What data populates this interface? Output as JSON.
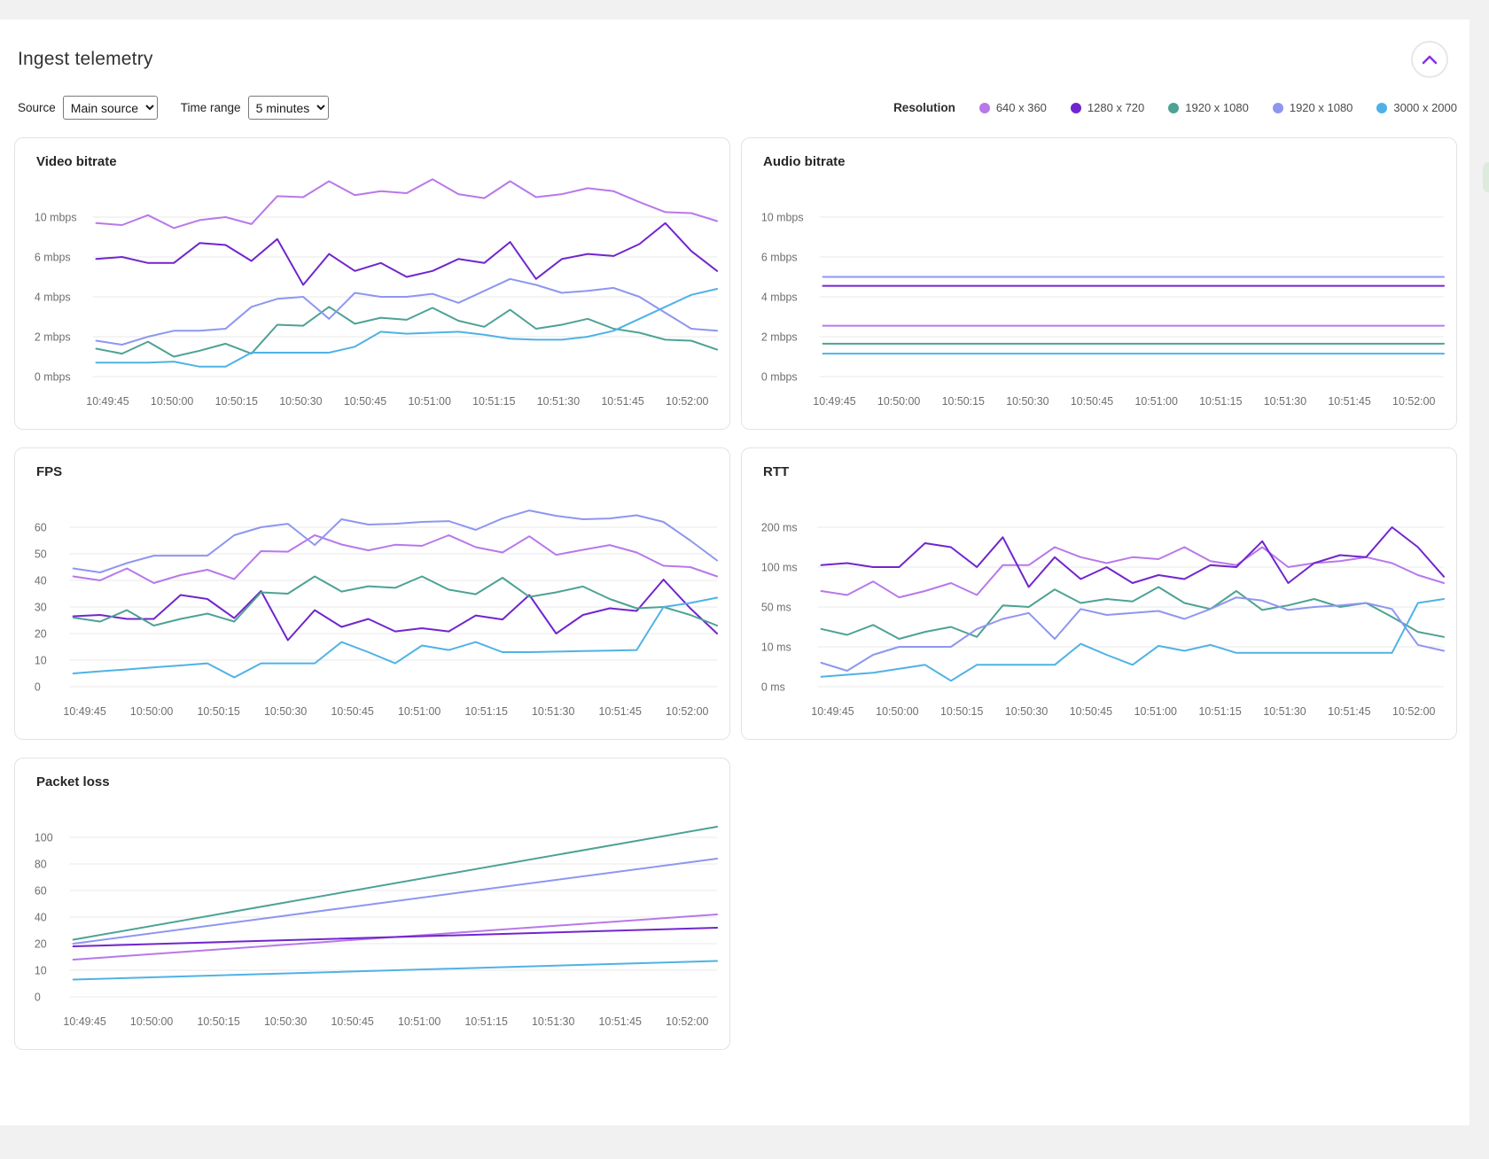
{
  "page": {
    "title": "Ingest telemetry"
  },
  "controls": {
    "source_label": "Source",
    "source_value": "Main source",
    "time_range_label": "Time range",
    "time_range_value": "5 minutes"
  },
  "legend": {
    "label": "Resolution",
    "items": [
      {
        "label": "640 x 360",
        "color": "#b878ea"
      },
      {
        "label": "1280 x 720",
        "color": "#7125cd"
      },
      {
        "label": "1920 x 1080",
        "color": "#4da294"
      },
      {
        "label": "1920 x 1080",
        "color": "#8e96f0"
      },
      {
        "label": "3000 x 2000",
        "color": "#4fb2e5"
      }
    ]
  },
  "chart_data": [
    {
      "type": "line",
      "title": "Video bitrate",
      "grid": true,
      "x_ticks": [
        "10:49:45",
        "10:50:00",
        "10:50:15",
        "10:50:30",
        "10:50:45",
        "10:51:00",
        "10:51:15",
        "10:51:30",
        "10:51:45",
        "10:52:00"
      ],
      "y_ticks": [
        {
          "value": 0,
          "label": "0 mbps"
        },
        {
          "value": 2,
          "label": "2 mbps"
        },
        {
          "value": 4,
          "label": "4 mbps"
        },
        {
          "value": 6,
          "label": "6 mbps"
        },
        {
          "value": 10,
          "label": "10 mbps"
        }
      ],
      "series": [
        {
          "name": "640 x 360",
          "color": "#b878ea",
          "values": [
            9.4,
            9.2,
            10.2,
            8.9,
            9.7,
            10.0,
            9.3,
            12.1,
            12.0,
            13.6,
            12.2,
            12.6,
            12.4,
            13.8,
            12.3,
            11.9,
            13.6,
            12.0,
            12.3,
            12.9,
            12.6,
            11.5,
            10.5,
            10.4,
            9.6
          ]
        },
        {
          "name": "1280 x 720",
          "color": "#7125cd",
          "values": [
            5.9,
            6.0,
            5.7,
            5.7,
            7.4,
            7.2,
            5.8,
            7.8,
            4.6,
            6.3,
            5.3,
            5.7,
            5.0,
            5.3,
            5.9,
            5.7,
            7.5,
            4.9,
            5.9,
            6.3,
            6.1,
            7.3,
            9.4,
            6.6,
            5.3
          ]
        },
        {
          "name": "1920 x 1080",
          "color": "#4da294",
          "values": [
            1.4,
            1.15,
            1.75,
            1.0,
            1.3,
            1.65,
            1.15,
            2.6,
            2.55,
            3.5,
            2.65,
            2.95,
            2.85,
            3.45,
            2.8,
            2.5,
            3.35,
            2.4,
            2.6,
            2.9,
            2.4,
            2.2,
            1.85,
            1.8,
            1.35
          ]
        },
        {
          "name": "1920 x 1080",
          "color": "#8e96f0",
          "values": [
            1.8,
            1.6,
            2.0,
            2.3,
            2.3,
            2.4,
            3.5,
            3.9,
            4.0,
            2.9,
            4.2,
            4.0,
            4.0,
            4.15,
            3.7,
            4.3,
            4.9,
            4.6,
            4.2,
            4.3,
            4.45,
            4.0,
            3.2,
            2.4,
            2.3
          ]
        },
        {
          "name": "3000 x 2000",
          "color": "#4fb2e5",
          "values": [
            0.7,
            0.7,
            0.7,
            0.75,
            0.5,
            0.5,
            1.2,
            1.2,
            1.2,
            1.2,
            1.5,
            2.25,
            2.15,
            2.2,
            2.25,
            2.1,
            1.9,
            1.85,
            1.85,
            2.0,
            2.3,
            2.9,
            3.5,
            4.1,
            4.4
          ]
        }
      ]
    },
    {
      "type": "line",
      "title": "Audio bitrate",
      "grid": true,
      "x_ticks": [
        "10:49:45",
        "10:50:00",
        "10:50:15",
        "10:50:30",
        "10:50:45",
        "10:51:00",
        "10:51:15",
        "10:51:30",
        "10:51:45",
        "10:52:00"
      ],
      "y_ticks": [
        {
          "value": 0,
          "label": "0 mbps"
        },
        {
          "value": 2,
          "label": "2 mbps"
        },
        {
          "value": 4,
          "label": "4 mbps"
        },
        {
          "value": 6,
          "label": "6 mbps"
        },
        {
          "value": 10,
          "label": "10 mbps"
        }
      ],
      "series": [
        {
          "name": "640 x 360",
          "color": "#b878ea",
          "values": [
            2.55,
            2.55
          ]
        },
        {
          "name": "1280 x 720",
          "color": "#7125cd",
          "values": [
            4.55,
            4.55
          ]
        },
        {
          "name": "1920 x 1080",
          "color": "#4da294",
          "values": [
            1.65,
            1.65
          ]
        },
        {
          "name": "1920 x 1080",
          "color": "#8e96f0",
          "values": [
            5.0,
            5.0
          ]
        },
        {
          "name": "3000 x 2000",
          "color": "#4fb2e5",
          "values": [
            1.15,
            1.15
          ]
        }
      ]
    },
    {
      "type": "line",
      "title": "FPS",
      "grid": true,
      "x_ticks": [
        "10:49:45",
        "10:50:00",
        "10:50:15",
        "10:50:30",
        "10:50:45",
        "10:51:00",
        "10:51:15",
        "10:51:30",
        "10:51:45",
        "10:52:00"
      ],
      "y_ticks": [
        {
          "value": 0,
          "label": "0"
        },
        {
          "value": 10,
          "label": "10"
        },
        {
          "value": 20,
          "label": "20"
        },
        {
          "value": 30,
          "label": "30"
        },
        {
          "value": 40,
          "label": "40"
        },
        {
          "value": 50,
          "label": "50"
        },
        {
          "value": 60,
          "label": "60"
        }
      ],
      "series": [
        {
          "name": "640 x 360",
          "color": "#b878ea",
          "values": [
            41.5,
            40,
            44.5,
            39,
            42,
            44,
            40.5,
            51,
            50.8,
            57,
            53.5,
            51.3,
            53.4,
            53,
            57,
            52.5,
            50.5,
            56.6,
            49.6,
            51.5,
            53.3,
            50.5,
            45.5,
            45,
            41.5
          ]
        },
        {
          "name": "1280 x 720",
          "color": "#7125cd",
          "values": [
            26.5,
            27,
            25.5,
            25.5,
            34.5,
            33,
            25.8,
            36,
            17.5,
            28.8,
            22.5,
            25.5,
            20.8,
            22,
            20.8,
            26.8,
            25.3,
            34.5,
            20,
            27,
            29.5,
            28.5,
            40.3,
            29.5,
            20
          ]
        },
        {
          "name": "1920 x 1080",
          "color": "#4da294",
          "values": [
            26,
            24.5,
            28.8,
            23,
            25.5,
            27.5,
            24.5,
            35.5,
            35,
            41.5,
            35.8,
            37.8,
            37.2,
            41.5,
            36.5,
            34.8,
            41,
            33.8,
            35.5,
            37.7,
            33,
            29.5,
            30,
            27,
            23
          ]
        },
        {
          "name": "1920 x 1080",
          "color": "#8e96f0",
          "values": [
            44.5,
            43,
            46.5,
            49.3,
            49.3,
            49.3,
            57,
            60,
            61.3,
            53.3,
            63,
            61,
            61.3,
            62,
            62.3,
            59,
            63.3,
            66.3,
            64.3,
            63,
            63.3,
            64.5,
            62,
            55,
            47.5
          ]
        },
        {
          "name": "3000 x 2000",
          "color": "#4fb2e5",
          "values": [
            5,
            5.8,
            6.5,
            7.3,
            8,
            8.8,
            3.5,
            8.8,
            8.8,
            8.8,
            16.8,
            13,
            8.8,
            15.5,
            13.8,
            16.8,
            13,
            13,
            13.2,
            13.4,
            13.6,
            13.8,
            30,
            31.5,
            33.5
          ]
        }
      ]
    },
    {
      "type": "line",
      "title": "RTT",
      "grid": true,
      "x_ticks": [
        "10:49:45",
        "10:50:00",
        "10:50:15",
        "10:50:30",
        "10:50:45",
        "10:51:00",
        "10:51:15",
        "10:51:30",
        "10:51:45",
        "10:52:00"
      ],
      "y_ticks": [
        {
          "value": 0,
          "label": "0 ms"
        },
        {
          "value": 10,
          "label": "10 ms"
        },
        {
          "value": 50,
          "label": "50 ms"
        },
        {
          "value": 100,
          "label": "100 ms"
        },
        {
          "value": 200,
          "label": "200 ms"
        }
      ],
      "series": [
        {
          "name": "640 x 360",
          "color": "#b878ea",
          "values": [
            70,
            65,
            82,
            62,
            70,
            80,
            65,
            105,
            105,
            150,
            125,
            110,
            125,
            120,
            150,
            115,
            105,
            150,
            100,
            110,
            115,
            125,
            110,
            90,
            80
          ]
        },
        {
          "name": "1280 x 720",
          "color": "#7125cd",
          "values": [
            105,
            110,
            100,
            100,
            160,
            150,
            100,
            175,
            75,
            125,
            85,
            100,
            80,
            90,
            85,
            105,
            100,
            165,
            80,
            110,
            130,
            125,
            200,
            150,
            88
          ]
        },
        {
          "name": "1920 x 1080",
          "color": "#4da294",
          "values": [
            28,
            22,
            32,
            18,
            25,
            30,
            20,
            52,
            50,
            72,
            55,
            60,
            57,
            75,
            55,
            48,
            70,
            47,
            52,
            60,
            50,
            55,
            40,
            25,
            20
          ]
        },
        {
          "name": "1920 x 1080",
          "color": "#8e96f0",
          "values": [
            6,
            4,
            8,
            10,
            10,
            10,
            28,
            38,
            44,
            18,
            48,
            42,
            44,
            46,
            38,
            48,
            62,
            58,
            47,
            50,
            52,
            55,
            48,
            12,
            9
          ]
        },
        {
          "name": "3000 x 2000",
          "color": "#4fb2e5",
          "values": [
            2.5,
            3,
            3.5,
            4.5,
            5.5,
            1.5,
            5.5,
            5.5,
            5.5,
            5.5,
            13,
            8,
            5.5,
            11,
            9,
            12,
            8.5,
            8.5,
            8.5,
            8.5,
            8.5,
            8.5,
            8.5,
            55,
            60
          ]
        }
      ]
    },
    {
      "type": "line",
      "title": "Packet loss",
      "grid": true,
      "x_ticks": [
        "10:49:45",
        "10:50:00",
        "10:50:15",
        "10:50:30",
        "10:50:45",
        "10:51:00",
        "10:51:15",
        "10:51:30",
        "10:51:45",
        "10:52:00"
      ],
      "y_ticks": [
        {
          "value": 0,
          "label": "0"
        },
        {
          "value": 10,
          "label": "10"
        },
        {
          "value": 20,
          "label": "20"
        },
        {
          "value": 40,
          "label": "40"
        },
        {
          "value": 60,
          "label": "60"
        },
        {
          "value": 80,
          "label": "80"
        },
        {
          "value": 100,
          "label": "100"
        }
      ],
      "series": [
        {
          "name": "640 x 360",
          "color": "#b878ea",
          "values": [
            14,
            42
          ]
        },
        {
          "name": "1280 x 720",
          "color": "#7125cd",
          "values": [
            19,
            32
          ]
        },
        {
          "name": "1920 x 1080",
          "color": "#4da294",
          "values": [
            23,
            108
          ]
        },
        {
          "name": "1920 x 1080",
          "color": "#8e96f0",
          "values": [
            20,
            84
          ]
        },
        {
          "name": "3000 x 2000",
          "color": "#4fb2e5",
          "values": [
            6.5,
            13.5
          ]
        }
      ]
    }
  ]
}
